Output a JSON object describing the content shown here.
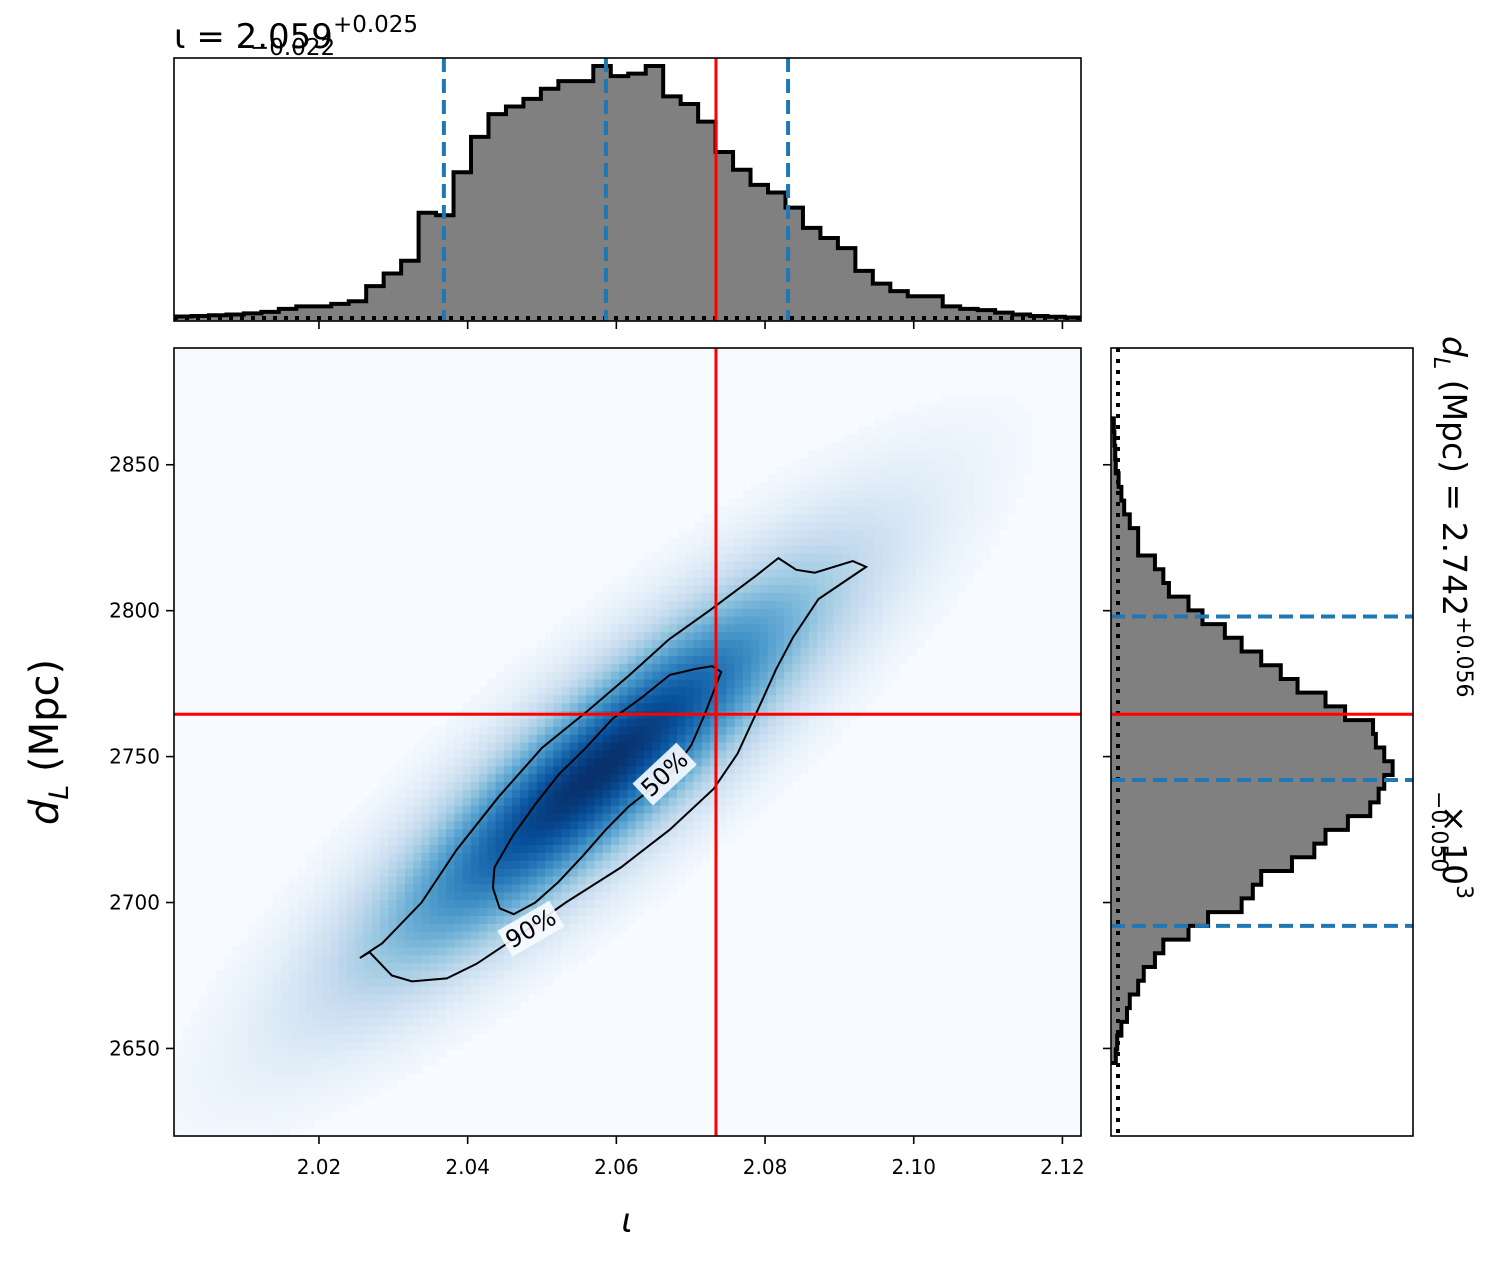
{
  "colors": {
    "truth": "#ff0000",
    "quantile": "#1f77b4",
    "hist_fill": "#808080",
    "hist_edge": "#000000",
    "density_low": "#f7fbff",
    "density_high": "#08306b"
  },
  "chart_data": [
    {
      "id": "iota-marginal",
      "type": "histogram",
      "title": {
        "prefix": "ι = 2.059",
        "sup": "+0.025",
        "sub": "−0.022"
      },
      "xlim": [
        2.0005,
        2.1225
      ],
      "ylim": [
        0,
        1.0
      ],
      "bin_edges_start": 2.0005,
      "bin_width": 0.00235,
      "counts": [
        0.01,
        0.012,
        0.015,
        0.018,
        0.022,
        0.028,
        0.04,
        0.05,
        0.05,
        0.06,
        0.07,
        0.13,
        0.18,
        0.23,
        0.42,
        0.41,
        0.58,
        0.72,
        0.81,
        0.84,
        0.87,
        0.91,
        0.94,
        0.94,
        1.0,
        0.96,
        0.97,
        1.0,
        0.88,
        0.85,
        0.78,
        0.66,
        0.59,
        0.53,
        0.5,
        0.44,
        0.36,
        0.32,
        0.28,
        0.19,
        0.14,
        0.11,
        0.09,
        0.09,
        0.05,
        0.04,
        0.035,
        0.025,
        0.018,
        0.012,
        0.009,
        0.006
      ],
      "quantiles": [
        2.0368,
        2.0586,
        2.0831
      ],
      "truth": 2.0734,
      "xticks": [
        2.02,
        2.04,
        2.06,
        2.08,
        2.1,
        2.12
      ]
    },
    {
      "id": "joint-density",
      "type": "heatmap",
      "xlabel": "ι",
      "ylabel": "d_L (Mpc)",
      "xlim": [
        2.0005,
        2.1225
      ],
      "ylim": [
        2620,
        2890
      ],
      "xticks": [
        2.02,
        2.04,
        2.06,
        2.08,
        2.1,
        2.12
      ],
      "xtick_labels": [
        "2.02",
        "2.04",
        "2.06",
        "2.08",
        "2.10",
        "2.12"
      ],
      "yticks": [
        2650,
        2700,
        2750,
        2800,
        2850
      ],
      "ytick_labels": [
        "2650",
        "2700",
        "2750",
        "2800",
        "2850"
      ],
      "truth": {
        "x": 2.0734,
        "y": 2764.5
      },
      "density": {
        "peak": [
          2.0575,
          2745
        ],
        "slope_mpc_per_unit": 2400,
        "sigma_along_mpc": 46,
        "sigma_across_mpc": 8.5
      },
      "contours": [
        {
          "label": "50%",
          "label_at": [
            2.0665,
            2744
          ],
          "label_angle_deg": -43,
          "points": [
            [
              2.0436,
              2712
            ],
            [
              2.0434,
              2705
            ],
            [
              2.0443,
              2698
            ],
            [
              2.0462,
              2696
            ],
            [
              2.0491,
              2700
            ],
            [
              2.0522,
              2707
            ],
            [
              2.0555,
              2716
            ],
            [
              2.0586,
              2725
            ],
            [
              2.0617,
              2733
            ],
            [
              2.0647,
              2739
            ],
            [
              2.0676,
              2745
            ],
            [
              2.0701,
              2754
            ],
            [
              2.0718,
              2764
            ],
            [
              2.0741,
              2779
            ],
            [
              2.0729,
              2781
            ],
            [
              2.0706,
              2780
            ],
            [
              2.0672,
              2778
            ],
            [
              2.0633,
              2770
            ],
            [
              2.0595,
              2763
            ],
            [
              2.0559,
              2753
            ],
            [
              2.0523,
              2744
            ],
            [
              2.0492,
              2734
            ],
            [
              2.0461,
              2723
            ],
            [
              2.0436,
              2712
            ]
          ]
        },
        {
          "label": "90%",
          "label_at": [
            2.0485,
            2691
          ],
          "label_angle_deg": -30,
          "points": [
            [
              2.0255,
              2681
            ],
            [
              2.0268,
              2683
            ],
            [
              2.0298,
              2675
            ],
            [
              2.0325,
              2673
            ],
            [
              2.0372,
              2674
            ],
            [
              2.0412,
              2679
            ],
            [
              2.0465,
              2688
            ],
            [
              2.0532,
              2700
            ],
            [
              2.0606,
              2712
            ],
            [
              2.0672,
              2725
            ],
            [
              2.0731,
              2739
            ],
            [
              2.0763,
              2751
            ],
            [
              2.0792,
              2767
            ],
            [
              2.0815,
              2780
            ],
            [
              2.0838,
              2791
            ],
            [
              2.0872,
              2804
            ],
            [
              2.0936,
              2815
            ],
            [
              2.0918,
              2817
            ],
            [
              2.0867,
              2813
            ],
            [
              2.0842,
              2814
            ],
            [
              2.0818,
              2818
            ],
            [
              2.0788,
              2812
            ],
            [
              2.0725,
              2800
            ],
            [
              2.067,
              2790
            ],
            [
              2.0618,
              2778
            ],
            [
              2.0563,
              2766
            ],
            [
              2.05,
              2753
            ],
            [
              2.0441,
              2736
            ],
            [
              2.0385,
              2718
            ],
            [
              2.0338,
              2700
            ],
            [
              2.0285,
              2686
            ],
            [
              2.0255,
              2681
            ]
          ]
        }
      ]
    },
    {
      "id": "dL-marginal",
      "type": "histogram-horizontal",
      "title": {
        "prefix": "d",
        "sub_l": "L",
        "mid": " (Mpc) = 2.742",
        "sup": "+0.056",
        "sub": "−0.050",
        "suffix": " × 10",
        "exp": "3"
      },
      "ylim": [
        2620,
        2890
      ],
      "xlim": [
        0,
        1.08
      ],
      "bin_edges_start": 2645,
      "bin_width": 4.7,
      "counts": [
        0.01,
        0.015,
        0.03,
        0.05,
        0.06,
        0.09,
        0.11,
        0.15,
        0.18,
        0.27,
        0.34,
        0.46,
        0.5,
        0.53,
        0.64,
        0.72,
        0.76,
        0.84,
        0.92,
        0.95,
        0.97,
        1.0,
        0.97,
        0.94,
        0.93,
        0.83,
        0.76,
        0.66,
        0.6,
        0.53,
        0.46,
        0.4,
        0.32,
        0.27,
        0.2,
        0.18,
        0.15,
        0.09,
        0.09,
        0.06,
        0.04,
        0.03,
        0.02,
        0.01,
        0.008,
        0.005,
        0.003
      ],
      "quantiles": [
        2692,
        2742,
        2798
      ],
      "truth": 2764.5
    }
  ]
}
